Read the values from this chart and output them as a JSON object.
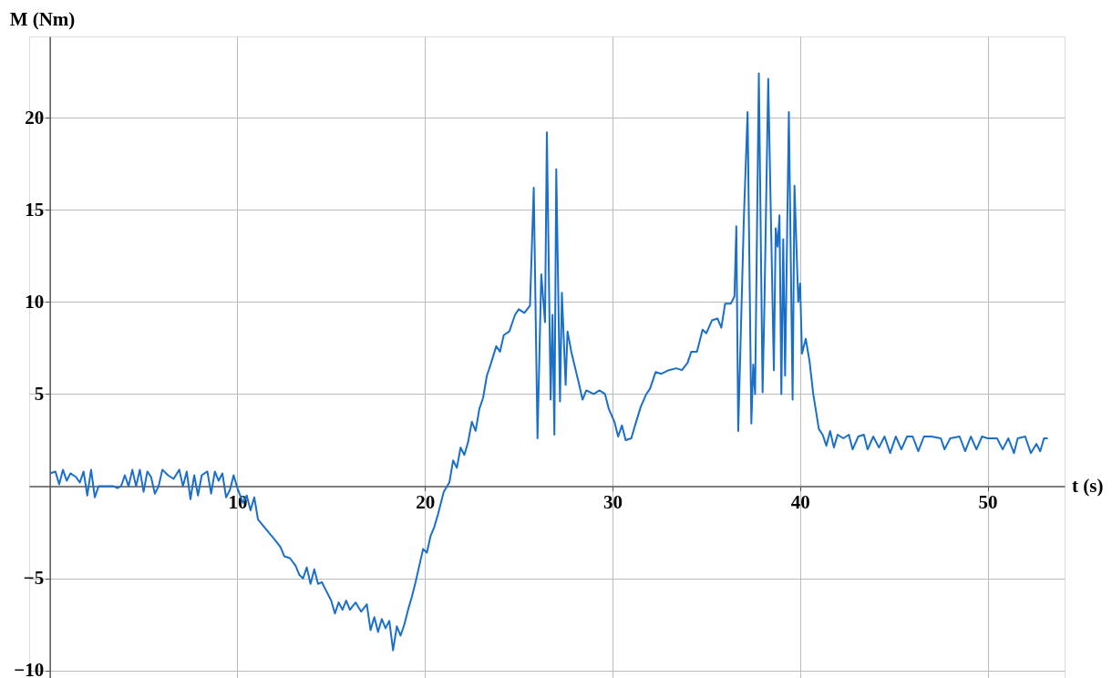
{
  "chart_data": {
    "type": "line",
    "xlabel": "t (s)",
    "ylabel": "M (Nm)",
    "xlim": [
      -1.1,
      54.1
    ],
    "ylim": [
      -10.4,
      24.4
    ],
    "xticks": [
      10,
      20,
      30,
      40,
      50
    ],
    "yticks": [
      -10,
      -5,
      5,
      10,
      15,
      20
    ],
    "grid": true,
    "marker": "none",
    "line_style": "solid",
    "series": [
      {
        "color": "#1a6fc8",
        "x": [
          0,
          0.3,
          0.5,
          0.7,
          0.9,
          1.1,
          1.4,
          1.6,
          1.8,
          2.0,
          2.2,
          2.4,
          2.6,
          3.0,
          3.4,
          3.6,
          3.8,
          4.0,
          4.2,
          4.4,
          4.6,
          4.8,
          5.0,
          5.2,
          5.4,
          5.6,
          5.8,
          6.0,
          6.3,
          6.6,
          6.9,
          7.1,
          7.3,
          7.5,
          7.7,
          7.9,
          8.1,
          8.4,
          8.6,
          8.8,
          9.0,
          9.2,
          9.4,
          9.6,
          9.8,
          10.0,
          10.3,
          10.5,
          10.7,
          10.9,
          11.1,
          12.0,
          12.3,
          12.5,
          12.8,
          13.1,
          13.3,
          13.5,
          13.7,
          13.9,
          14.1,
          14.3,
          14.5,
          14.7,
          15.0,
          15.2,
          15.4,
          15.6,
          15.8,
          16.0,
          16.3,
          16.6,
          16.9,
          17.1,
          17.3,
          17.5,
          17.7,
          17.9,
          18.1,
          18.3,
          18.5,
          18.7,
          18.9,
          19.1,
          19.3,
          19.5,
          19.7,
          19.9,
          20.1,
          20.3,
          20.5,
          20.7,
          21.0,
          21.3,
          21.5,
          21.7,
          21.9,
          22.1,
          22.3,
          22.5,
          22.7,
          22.9,
          23.1,
          23.3,
          23.5,
          23.8,
          24.0,
          24.2,
          24.5,
          24.8,
          25.0,
          25.3,
          25.6,
          25.8,
          26.0,
          26.2,
          26.4,
          26.5,
          26.7,
          26.8,
          26.9,
          27.0,
          27.2,
          27.3,
          27.5,
          27.6,
          27.8,
          28.2,
          28.4,
          28.6,
          29.0,
          29.3,
          29.6,
          29.8,
          30.1,
          30.3,
          30.5,
          30.7,
          31.0,
          31.2,
          31.5,
          31.8,
          32.0,
          32.3,
          32.6,
          33.0,
          33.4,
          33.7,
          34.0,
          34.2,
          34.5,
          34.8,
          35.0,
          35.3,
          35.6,
          35.8,
          36.0,
          36.3,
          36.5,
          36.6,
          36.7,
          37.0,
          37.2,
          37.4,
          37.5,
          37.6,
          37.8,
          38.0,
          38.1,
          38.3,
          38.6,
          38.7,
          38.8,
          38.9,
          39.0,
          39.1,
          39.2,
          39.4,
          39.6,
          39.7,
          39.9,
          40.0,
          40.1,
          40.3,
          40.5,
          40.7,
          41.0,
          41.2,
          41.4,
          41.6,
          41.8,
          42.0,
          42.3,
          42.6,
          42.8,
          43.1,
          43.4,
          43.6,
          43.9,
          44.2,
          44.5,
          44.8,
          45.1,
          45.4,
          45.7,
          46.0,
          46.3,
          46.6,
          47.0,
          47.5,
          47.7,
          48.0,
          48.5,
          48.8,
          49.1,
          49.4,
          49.7,
          50.0,
          50.5,
          50.8,
          51.1,
          51.4,
          51.6,
          52.0,
          52.3,
          52.6,
          52.8,
          53.0,
          53.2
        ],
        "values": [
          0.7,
          0.8,
          0.1,
          0.9,
          0.3,
          0.7,
          0.5,
          0.2,
          0.8,
          -0.5,
          0.9,
          -0.6,
          0.0,
          0.0,
          0.0,
          -0.1,
          0.0,
          0.6,
          0.0,
          0.9,
          0.0,
          0.9,
          -0.3,
          0.8,
          0.5,
          -0.4,
          0.0,
          0.9,
          0.6,
          0.4,
          0.9,
          0.0,
          0.8,
          -0.7,
          0.6,
          -0.5,
          0.6,
          0.8,
          -0.4,
          0.8,
          0.3,
          0.7,
          -0.6,
          -0.2,
          0.6,
          -0.1,
          -0.9,
          -0.5,
          -1.3,
          -0.6,
          -1.8,
          -2.9,
          -3.3,
          -3.8,
          -3.9,
          -4.3,
          -4.8,
          -5.0,
          -4.4,
          -5.3,
          -4.5,
          -5.3,
          -5.2,
          -5.6,
          -6.2,
          -6.9,
          -6.3,
          -6.7,
          -6.2,
          -6.7,
          -6.3,
          -6.8,
          -6.4,
          -7.8,
          -7.1,
          -7.9,
          -7.2,
          -7.7,
          -7.3,
          -8.9,
          -7.6,
          -8.1,
          -7.5,
          -6.7,
          -6.0,
          -5.2,
          -4.3,
          -3.4,
          -3.6,
          -2.7,
          -2.2,
          -1.5,
          -0.3,
          0.2,
          1.4,
          1.0,
          2.1,
          1.7,
          2.4,
          3.5,
          3.0,
          4.2,
          4.8,
          6.0,
          6.6,
          7.6,
          7.3,
          8.2,
          8.4,
          9.3,
          9.6,
          9.4,
          9.8,
          16.2,
          2.6,
          11.5,
          8.9,
          19.2,
          4.7,
          9.3,
          2.8,
          17.2,
          4.6,
          10.5,
          5.5,
          8.4,
          7.3,
          5.6,
          4.7,
          5.2,
          5.0,
          5.2,
          5.0,
          4.2,
          3.5,
          2.7,
          3.3,
          2.5,
          2.6,
          3.3,
          4.3,
          5.0,
          5.3,
          6.2,
          6.1,
          6.3,
          6.4,
          6.3,
          6.7,
          7.3,
          7.3,
          8.5,
          8.3,
          9.0,
          9.1,
          8.6,
          9.9,
          9.9,
          10.3,
          14.1,
          3.0,
          14.5,
          20.3,
          3.4,
          6.6,
          5.0,
          22.4,
          5.1,
          10.0,
          22.1,
          6.3,
          14.0,
          13.0,
          14.7,
          5.0,
          13.4,
          6.0,
          20.3,
          4.7,
          16.3,
          10.0,
          11.0,
          7.2,
          8.0,
          6.8,
          5.0,
          3.1,
          2.8,
          2.2,
          3.0,
          2.1,
          2.8,
          2.6,
          2.8,
          2.0,
          2.7,
          2.8,
          2.0,
          2.7,
          2.1,
          2.7,
          1.8,
          2.7,
          2.0,
          2.7,
          2.7,
          1.9,
          2.7,
          2.7,
          2.6,
          2.0,
          2.6,
          2.7,
          1.9,
          2.7,
          2.0,
          2.7,
          2.6,
          2.6,
          2.0,
          2.6,
          1.8,
          2.6,
          2.7,
          1.8,
          2.3,
          1.9,
          2.6,
          2.6
        ]
      }
    ]
  }
}
